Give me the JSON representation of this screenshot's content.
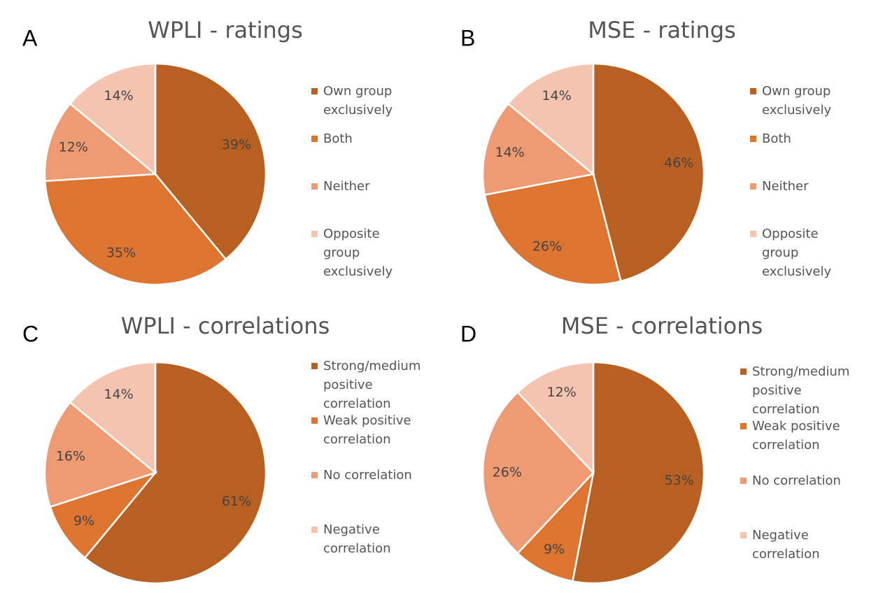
{
  "chart_data": [
    {
      "type": "pie",
      "label": "A",
      "title": "WPLI - ratings",
      "categories": [
        "Own group exclusively",
        "Both",
        "Neither",
        "Opposite group exclusively"
      ],
      "values": [
        39,
        35,
        12,
        14
      ],
      "value_labels": [
        "39%",
        "35%",
        "12%",
        "14%"
      ],
      "colors": [
        "#b85f22",
        "#dd7430",
        "#ee9a72",
        "#f4c4b1"
      ]
    },
    {
      "type": "pie",
      "label": "B",
      "title": "MSE - ratings",
      "categories": [
        "Own group exclusively",
        "Both",
        "Neither",
        "Opposite group exclusively"
      ],
      "values": [
        46,
        26,
        14,
        14
      ],
      "value_labels": [
        "46%",
        "26%",
        "14%",
        "14%"
      ],
      "colors": [
        "#b85f22",
        "#dd7430",
        "#ee9a72",
        "#f4c4b1"
      ]
    },
    {
      "type": "pie",
      "label": "C",
      "title": "WPLI - correlations",
      "categories": [
        "Strong/medium positive correlation",
        "Weak positive correlation",
        "No correlation",
        "Negative correlation"
      ],
      "values": [
        61,
        9,
        16,
        14
      ],
      "value_labels": [
        "61%",
        "9%",
        "16%",
        "14%"
      ],
      "colors": [
        "#b85f22",
        "#dd7430",
        "#ee9a72",
        "#f4c4b1"
      ]
    },
    {
      "type": "pie",
      "label": "D",
      "title": "MSE - correlations",
      "categories": [
        "Strong/medium positive correlation",
        "Weak positive correlation",
        "No correlation",
        "Negative correlation"
      ],
      "values": [
        53,
        9,
        26,
        12
      ],
      "value_labels": [
        "53%",
        "9%",
        "26%",
        "12%"
      ],
      "colors": [
        "#b85f22",
        "#dd7430",
        "#ee9a72",
        "#f4c4b1"
      ]
    }
  ]
}
